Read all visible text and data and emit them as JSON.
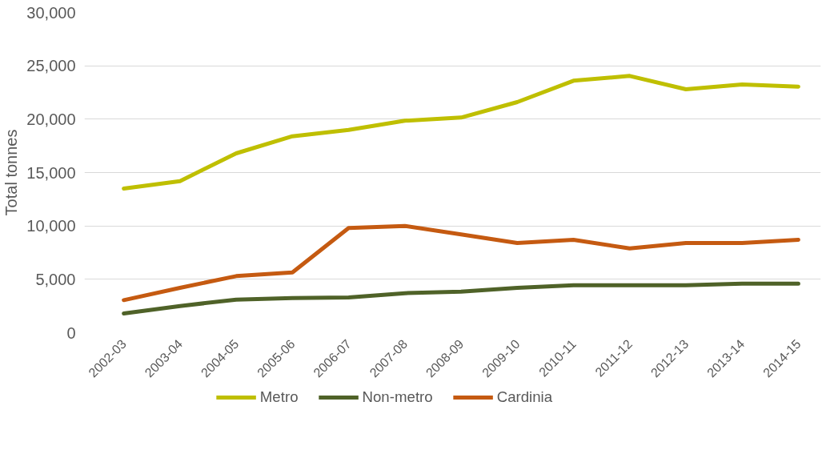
{
  "chart_data": {
    "type": "line",
    "ylabel": "Total tonnes",
    "categories": [
      "2002-03",
      "2003-04",
      "2004-05",
      "2005-06",
      "2006-07",
      "2007-08",
      "2008-09",
      "2009-10",
      "2010-11",
      "2011-12",
      "2012-13",
      "2013-14",
      "2014-15"
    ],
    "series": [
      {
        "name": "Metro",
        "color": "#bfbf00",
        "values": [
          13500,
          14200,
          16800,
          18400,
          19000,
          19850,
          20150,
          21600,
          23600,
          24050,
          22800,
          23250,
          23050
        ]
      },
      {
        "name": "Non-metro",
        "color": "#4f6228",
        "values": [
          1800,
          2500,
          3100,
          3250,
          3300,
          3700,
          3850,
          4200,
          4450,
          4450,
          4450,
          4600,
          4600
        ]
      },
      {
        "name": "Cardinia",
        "color": "#c55a11",
        "values": [
          3050,
          4200,
          5300,
          5650,
          9800,
          10000,
          9200,
          8400,
          8700,
          7900,
          8400,
          8400,
          8700
        ]
      }
    ],
    "ylim": [
      0,
      30000
    ],
    "yticks": [
      {
        "value": 0,
        "label": "0"
      },
      {
        "value": 5000,
        "label": "5,000"
      },
      {
        "value": 10000,
        "label": "10,000"
      },
      {
        "value": 15000,
        "label": "15,000"
      },
      {
        "value": 20000,
        "label": "20,000"
      },
      {
        "value": 25000,
        "label": "25,000"
      },
      {
        "value": 30000,
        "label": "30,000"
      }
    ],
    "grid": "y",
    "legend": "bottom",
    "marker": "none",
    "line_style": "solid"
  }
}
